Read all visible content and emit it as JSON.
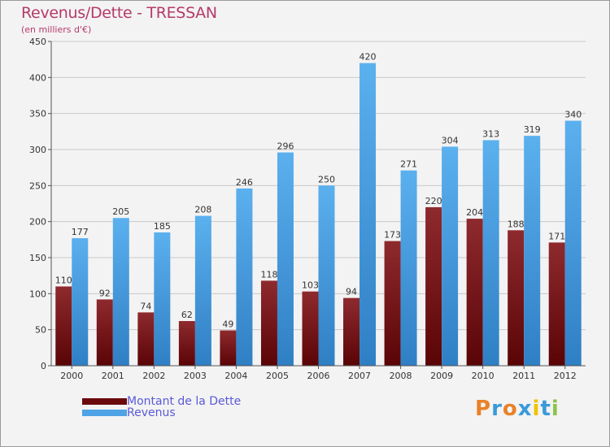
{
  "title": "Revenus/Dette - TRESSAN",
  "subtitle": "(en milliers d'€)",
  "legend": [
    {
      "label": "Montant de la Dette",
      "color": "#7a1010"
    },
    {
      "label": "Revenus",
      "color": "#4da3e5"
    }
  ],
  "logo": {
    "letters": [
      "P",
      "r",
      "o",
      "x",
      "i",
      "t",
      "i"
    ],
    "colors": [
      "#e8822a",
      "#3a9ad9",
      "#e8822a",
      "#3a9ad9",
      "#f2c200",
      "#3a9ad9",
      "#8bc34a"
    ]
  },
  "chart_data": {
    "type": "bar",
    "title": "Revenus/Dette - TRESSAN",
    "ylabel": "(en milliers d'€)",
    "xlabel": "",
    "categories": [
      "2000",
      "2001",
      "2002",
      "2003",
      "2004",
      "2005",
      "2006",
      "2007",
      "2008",
      "2009",
      "2010",
      "2011",
      "2012"
    ],
    "series": [
      {
        "name": "Montant de la Dette",
        "values": [
          110,
          92,
          74,
          62,
          49,
          118,
          103,
          94,
          173,
          220,
          204,
          188,
          171
        ]
      },
      {
        "name": "Revenus",
        "values": [
          177,
          205,
          185,
          208,
          246,
          296,
          250,
          420,
          271,
          304,
          313,
          319,
          340
        ]
      }
    ],
    "ylim": [
      0,
      450
    ],
    "yticks": [
      0,
      50,
      100,
      150,
      200,
      250,
      300,
      350,
      400,
      450
    ],
    "grid": true,
    "legend_position": "bottom-left"
  }
}
